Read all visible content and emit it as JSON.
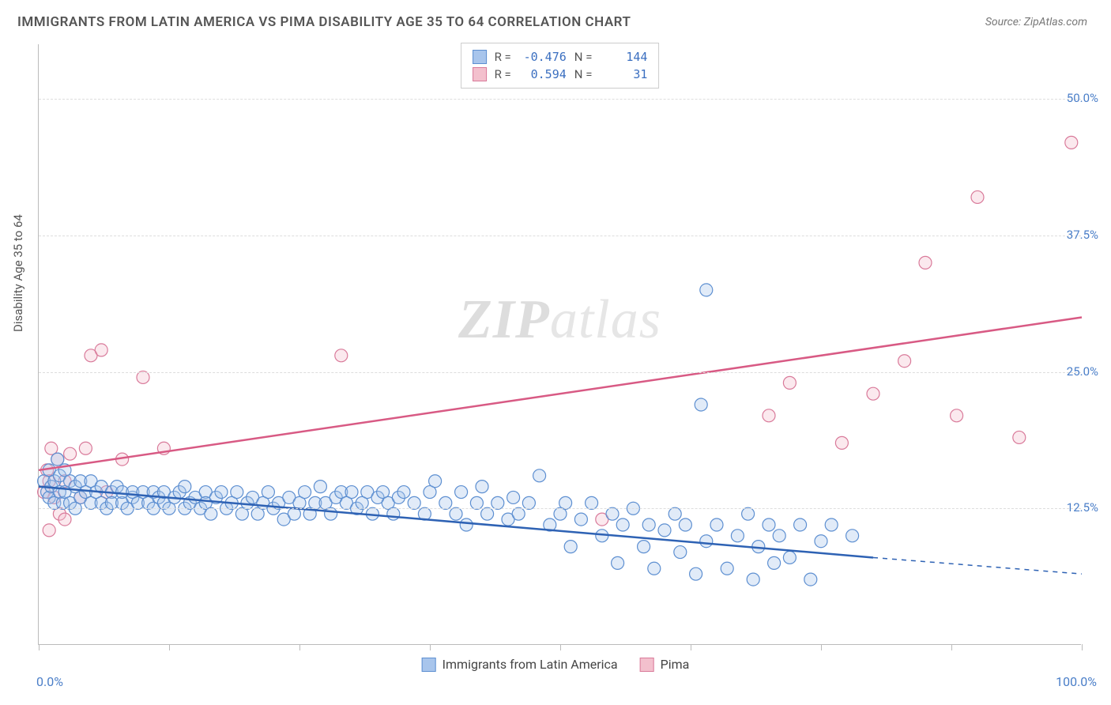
{
  "title": "IMMIGRANTS FROM LATIN AMERICA VS PIMA DISABILITY AGE 35 TO 64 CORRELATION CHART",
  "source": "Source: ZipAtlas.com",
  "watermark_a": "ZIP",
  "watermark_b": "atlas",
  "y_axis_label": "Disability Age 35 to 64",
  "chart": {
    "type": "scatter",
    "background_color": "#ffffff",
    "grid_color": "#dddddd",
    "axis_color": "#bbbbbb",
    "tick_label_color": "#4a7ec8",
    "xlim": [
      0,
      100
    ],
    "ylim": [
      0,
      55
    ],
    "x_tick_positions": [
      0,
      12.5,
      25,
      37.5,
      50,
      62.5,
      75,
      87.5,
      100
    ],
    "y_ticks": [
      {
        "value": 12.5,
        "label": "12.5%"
      },
      {
        "value": 25.0,
        "label": "25.0%"
      },
      {
        "value": 37.5,
        "label": "37.5%"
      },
      {
        "value": 50.0,
        "label": "50.0%"
      }
    ],
    "x_min_label": "0.0%",
    "x_max_label": "100.0%",
    "marker_radius": 8,
    "marker_stroke_width": 1.2,
    "marker_fill_opacity": 0.35,
    "line_width": 2.5,
    "series": [
      {
        "name": "Immigrants from Latin America",
        "fill": "#a8c5ec",
        "stroke": "#5d8fd1",
        "line_color": "#2e62b4",
        "R": "-0.476",
        "N": "144",
        "trend": {
          "x1": 0,
          "y1": 14.5,
          "x2": 80,
          "y2": 8.0
        },
        "trend_dash": {
          "x1": 80,
          "y1": 8.0,
          "x2": 100,
          "y2": 6.5
        },
        "points": [
          [
            0.5,
            15
          ],
          [
            0.8,
            14
          ],
          [
            1,
            13.5
          ],
          [
            1,
            16
          ],
          [
            1.2,
            14.5
          ],
          [
            1.5,
            15
          ],
          [
            1.5,
            13
          ],
          [
            1.8,
            17
          ],
          [
            2,
            14
          ],
          [
            2,
            15.5
          ],
          [
            2.3,
            13
          ],
          [
            2.5,
            16
          ],
          [
            2.5,
            14
          ],
          [
            3,
            15
          ],
          [
            3,
            13
          ],
          [
            3.5,
            14.5
          ],
          [
            3.5,
            12.5
          ],
          [
            4,
            15
          ],
          [
            4,
            13.5
          ],
          [
            4.5,
            14
          ],
          [
            5,
            13
          ],
          [
            5,
            15
          ],
          [
            5.5,
            14
          ],
          [
            6,
            13
          ],
          [
            6,
            14.5
          ],
          [
            6.5,
            12.5
          ],
          [
            7,
            14
          ],
          [
            7,
            13
          ],
          [
            7.5,
            14.5
          ],
          [
            8,
            13
          ],
          [
            8,
            14
          ],
          [
            8.5,
            12.5
          ],
          [
            9,
            13.5
          ],
          [
            9,
            14
          ],
          [
            9.5,
            13
          ],
          [
            10,
            14
          ],
          [
            10.5,
            13
          ],
          [
            11,
            14
          ],
          [
            11,
            12.5
          ],
          [
            11.5,
            13.5
          ],
          [
            12,
            13
          ],
          [
            12,
            14
          ],
          [
            12.5,
            12.5
          ],
          [
            13,
            13.5
          ],
          [
            13.5,
            14
          ],
          [
            14,
            12.5
          ],
          [
            14,
            14.5
          ],
          [
            14.5,
            13
          ],
          [
            15,
            13.5
          ],
          [
            15.5,
            12.5
          ],
          [
            16,
            14
          ],
          [
            16,
            13
          ],
          [
            16.5,
            12
          ],
          [
            17,
            13.5
          ],
          [
            17.5,
            14
          ],
          [
            18,
            12.5
          ],
          [
            18.5,
            13
          ],
          [
            19,
            14
          ],
          [
            19.5,
            12
          ],
          [
            20,
            13
          ],
          [
            20.5,
            13.5
          ],
          [
            21,
            12
          ],
          [
            21.5,
            13
          ],
          [
            22,
            14
          ],
          [
            22.5,
            12.5
          ],
          [
            23,
            13
          ],
          [
            23.5,
            11.5
          ],
          [
            24,
            13.5
          ],
          [
            24.5,
            12
          ],
          [
            25,
            13
          ],
          [
            25.5,
            14
          ],
          [
            26,
            12
          ],
          [
            26.5,
            13
          ],
          [
            27,
            14.5
          ],
          [
            27.5,
            13
          ],
          [
            28,
            12
          ],
          [
            28.5,
            13.5
          ],
          [
            29,
            14
          ],
          [
            29.5,
            13
          ],
          [
            30,
            14
          ],
          [
            30.5,
            12.5
          ],
          [
            31,
            13
          ],
          [
            31.5,
            14
          ],
          [
            32,
            12
          ],
          [
            32.5,
            13.5
          ],
          [
            33,
            14
          ],
          [
            33.5,
            13
          ],
          [
            34,
            12
          ],
          [
            34.5,
            13.5
          ],
          [
            35,
            14
          ],
          [
            36,
            13
          ],
          [
            37,
            12
          ],
          [
            37.5,
            14
          ],
          [
            38,
            15
          ],
          [
            39,
            13
          ],
          [
            40,
            12
          ],
          [
            40.5,
            14
          ],
          [
            41,
            11
          ],
          [
            42,
            13
          ],
          [
            42.5,
            14.5
          ],
          [
            43,
            12
          ],
          [
            44,
            13
          ],
          [
            45,
            11.5
          ],
          [
            45.5,
            13.5
          ],
          [
            46,
            12
          ],
          [
            47,
            13
          ],
          [
            48,
            15.5
          ],
          [
            49,
            11
          ],
          [
            50,
            12
          ],
          [
            50.5,
            13
          ],
          [
            51,
            9
          ],
          [
            52,
            11.5
          ],
          [
            53,
            13
          ],
          [
            54,
            10
          ],
          [
            55,
            12
          ],
          [
            55.5,
            7.5
          ],
          [
            56,
            11
          ],
          [
            57,
            12.5
          ],
          [
            58,
            9
          ],
          [
            58.5,
            11
          ],
          [
            59,
            7
          ],
          [
            60,
            10.5
          ],
          [
            61,
            12
          ],
          [
            61.5,
            8.5
          ],
          [
            62,
            11
          ],
          [
            63,
            6.5
          ],
          [
            63.5,
            22
          ],
          [
            64,
            9.5
          ],
          [
            65,
            11
          ],
          [
            66,
            7
          ],
          [
            67,
            10
          ],
          [
            68,
            12
          ],
          [
            68.5,
            6
          ],
          [
            69,
            9
          ],
          [
            70,
            11
          ],
          [
            70.5,
            7.5
          ],
          [
            71,
            10
          ],
          [
            72,
            8
          ],
          [
            73,
            11
          ],
          [
            74,
            6
          ],
          [
            75,
            9.5
          ],
          [
            76,
            11
          ],
          [
            64,
            32.5
          ],
          [
            78,
            10
          ]
        ]
      },
      {
        "name": "Pima",
        "fill": "#f3c0cd",
        "stroke": "#d97a9a",
        "line_color": "#d85a84",
        "R": "0.594",
        "N": "31",
        "trend": {
          "x1": 0,
          "y1": 16.0,
          "x2": 100,
          "y2": 30.0
        },
        "points": [
          [
            0.5,
            14
          ],
          [
            0.8,
            16
          ],
          [
            1,
            15
          ],
          [
            1.2,
            18
          ],
          [
            1.5,
            13.5
          ],
          [
            1.8,
            17
          ],
          [
            2,
            12
          ],
          [
            2.5,
            15
          ],
          [
            3,
            17.5
          ],
          [
            1,
            10.5
          ],
          [
            4,
            13.5
          ],
          [
            4.5,
            18
          ],
          [
            5,
            26.5
          ],
          [
            6,
            27
          ],
          [
            6.5,
            14
          ],
          [
            8,
            17
          ],
          [
            10,
            24.5
          ],
          [
            12,
            18
          ],
          [
            29,
            26.5
          ],
          [
            54,
            11.5
          ],
          [
            70,
            21
          ],
          [
            72,
            24
          ],
          [
            77,
            18.5
          ],
          [
            80,
            23
          ],
          [
            83,
            26
          ],
          [
            85,
            35
          ],
          [
            88,
            21
          ],
          [
            90,
            41
          ],
          [
            94,
            19
          ],
          [
            2.5,
            11.5
          ],
          [
            99,
            46
          ]
        ]
      }
    ],
    "legend_top": {
      "r_label": "R =",
      "n_label": "N ="
    },
    "legend_bottom": [
      {
        "label": "Immigrants from Latin America",
        "fill": "#a8c5ec",
        "stroke": "#5d8fd1"
      },
      {
        "label": "Pima",
        "fill": "#f3c0cd",
        "stroke": "#d97a9a"
      }
    ]
  }
}
